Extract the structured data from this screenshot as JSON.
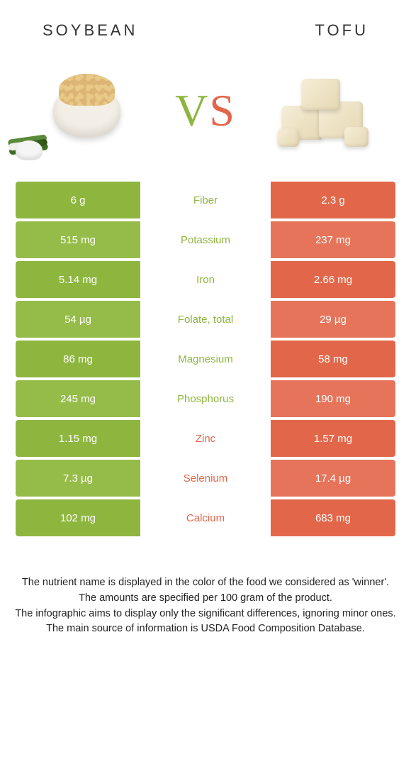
{
  "colors": {
    "soybean": "#8eb63f",
    "soybean_alt": "#95bc48",
    "tofu": "#e2674a",
    "tofu_alt": "#e5745a",
    "text_dark": "#333333"
  },
  "header": {
    "left_title": "Soybean",
    "right_title": "Tofu",
    "vs_v": "V",
    "vs_s": "S"
  },
  "comparison": {
    "type": "table",
    "left_food": "Soybean",
    "right_food": "Tofu",
    "rows": [
      {
        "nutrient": "Fiber",
        "left": "6 g",
        "right": "2.3 g",
        "winner": "left"
      },
      {
        "nutrient": "Potassium",
        "left": "515 mg",
        "right": "237 mg",
        "winner": "left"
      },
      {
        "nutrient": "Iron",
        "left": "5.14 mg",
        "right": "2.66 mg",
        "winner": "left"
      },
      {
        "nutrient": "Folate, total",
        "left": "54 µg",
        "right": "29 µg",
        "winner": "left"
      },
      {
        "nutrient": "Magnesium",
        "left": "86 mg",
        "right": "58 mg",
        "winner": "left"
      },
      {
        "nutrient": "Phosphorus",
        "left": "245 mg",
        "right": "190 mg",
        "winner": "left"
      },
      {
        "nutrient": "Zinc",
        "left": "1.15 mg",
        "right": "1.57 mg",
        "winner": "right"
      },
      {
        "nutrient": "Selenium",
        "left": "7.3 µg",
        "right": "17.4 µg",
        "winner": "right"
      },
      {
        "nutrient": "Calcium",
        "left": "102 mg",
        "right": "683 mg",
        "winner": "right"
      }
    ]
  },
  "footer": {
    "line1": "The nutrient name is displayed in the color of the food we considered as 'winner'.",
    "line2": "The amounts are specified per 100 gram of the product.",
    "line3": "The infographic aims to display only the significant differences, ignoring minor ones.",
    "line4": "The main source of information is USDA Food Composition Database."
  }
}
